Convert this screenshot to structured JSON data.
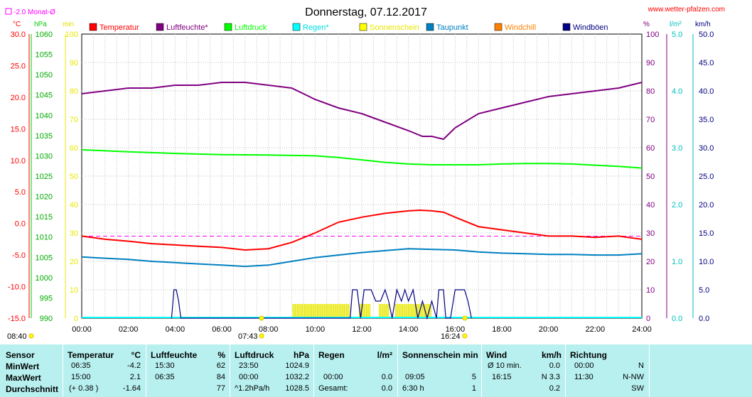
{
  "header": {
    "title": "Donnerstag, 07.12.2017",
    "url": "www.wetter-pfalzen.com",
    "monthly_avg": "-2.0 Monat-Ø"
  },
  "chart_data": {
    "type": "line",
    "x_ticks": [
      "00:00",
      "02:00",
      "04:00",
      "06:00",
      "08:00",
      "10:00",
      "12:00",
      "14:00",
      "16:00",
      "18:00",
      "20:00",
      "22:00",
      "24:00"
    ],
    "units": {
      "temp": "°C",
      "hpa": "hPa",
      "min": "min",
      "pct": "%",
      "lm2": "l/m²",
      "kmh": "km/h"
    },
    "temp_ticks": [
      "30.0",
      "25.0",
      "20.0",
      "15.0",
      "10.0",
      "5.0",
      "0.0",
      "-5.0",
      "-10.0",
      "-15.0"
    ],
    "hpa_ticks": [
      "1060",
      "1055",
      "1050",
      "1045",
      "1040",
      "1035",
      "1030",
      "1025",
      "1020",
      "1015",
      "1010",
      "1005",
      "1000",
      "995",
      "990"
    ],
    "min_ticks": [
      "100",
      "90",
      "80",
      "70",
      "60",
      "50",
      "40",
      "30",
      "20",
      "10",
      "0"
    ],
    "pct_ticks": [
      "100",
      "90",
      "80",
      "70",
      "60",
      "50",
      "40",
      "30",
      "20",
      "10",
      "0"
    ],
    "lm2_ticks": [
      "5.0",
      "4.0",
      "3.0",
      "2.0",
      "1.0",
      "0.0"
    ],
    "kmh_ticks": [
      "50.0",
      "45.0",
      "40.0",
      "35.0",
      "30.0",
      "25.0",
      "20.0",
      "15.0",
      "10.0",
      "5.0",
      "0.0"
    ],
    "legend": [
      {
        "label": "Temperatur",
        "color": "#ff0000"
      },
      {
        "label": "Luftfeuchte*",
        "color": "#800080"
      },
      {
        "label": "Luftdruck",
        "color": "#00ff00"
      },
      {
        "label": "Regen*",
        "color": "#00ffff"
      },
      {
        "label": "Sonnenschein",
        "color": "#ffff00"
      },
      {
        "label": "Taupunkt",
        "color": "#0080c0"
      },
      {
        "label": "Windchill",
        "color": "#ff8000"
      },
      {
        "label": "Windböen",
        "color": "#000080"
      }
    ],
    "monthly_avg_temp": -2.0,
    "sunrise": "08:40",
    "solar_noon": "07:43",
    "sunset": "16:24",
    "series": [
      {
        "name": "Temperatur",
        "axis": "temp",
        "color": "#ff0000",
        "x": [
          0,
          1,
          2,
          3,
          4,
          5,
          6,
          7,
          8,
          9,
          10,
          11,
          12,
          13,
          14,
          14.5,
          15,
          15.5,
          16,
          17,
          18,
          19,
          20,
          21,
          22,
          23,
          24
        ],
        "y": [
          -2.0,
          -2.5,
          -2.8,
          -3.2,
          -3.4,
          -3.6,
          -3.8,
          -4.2,
          -4.0,
          -3.0,
          -1.5,
          0.2,
          1.0,
          1.6,
          2.0,
          2.1,
          2.0,
          1.8,
          1.0,
          -0.5,
          -1.0,
          -1.5,
          -2.0,
          -2.0,
          -2.2,
          -2.0,
          -2.5
        ]
      },
      {
        "name": "Luftfeuchte*",
        "axis": "pct",
        "color": "#800080",
        "x": [
          0,
          1,
          2,
          3,
          4,
          5,
          6,
          7,
          8,
          9,
          10,
          11,
          12,
          13,
          14,
          14.6,
          15,
          15.5,
          16,
          17,
          18,
          19,
          20,
          21,
          22,
          23,
          24
        ],
        "y": [
          79,
          80,
          81,
          81,
          82,
          82,
          83,
          83,
          82,
          81,
          77,
          74,
          72,
          69,
          66,
          64,
          64,
          63,
          67,
          72,
          74,
          76,
          78,
          79,
          80,
          81,
          83
        ]
      },
      {
        "name": "Luftdruck",
        "axis": "hpa",
        "color": "#00ff00",
        "x": [
          0,
          2,
          4,
          6,
          8,
          10,
          11,
          12,
          13,
          14,
          15,
          16,
          17,
          18,
          19,
          20,
          21,
          22,
          23,
          24
        ],
        "y": [
          1031.5,
          1031.0,
          1030.6,
          1030.3,
          1030.2,
          1030.0,
          1029.6,
          1029.0,
          1028.4,
          1028.0,
          1027.8,
          1027.8,
          1027.8,
          1028.0,
          1028.1,
          1028.1,
          1028.0,
          1027.7,
          1027.4,
          1027.0
        ]
      },
      {
        "name": "Taupunkt",
        "axis": "temp",
        "color": "#0080c0",
        "x": [
          0,
          1,
          2,
          3,
          4,
          5,
          6,
          7,
          8,
          9,
          10,
          11,
          12,
          13,
          14,
          15,
          16,
          17,
          18,
          19,
          20,
          21,
          22,
          23,
          24
        ],
        "y": [
          -5.3,
          -5.5,
          -5.7,
          -6.0,
          -6.2,
          -6.4,
          -6.6,
          -6.8,
          -6.6,
          -6.0,
          -5.4,
          -5.0,
          -4.6,
          -4.3,
          -4.0,
          -4.1,
          -4.2,
          -4.5,
          -4.7,
          -4.8,
          -4.9,
          -4.9,
          -5.0,
          -5.0,
          -4.8
        ]
      },
      {
        "name": "Windböen",
        "axis": "kmh",
        "color": "#000080",
        "x": [
          3.85,
          3.95,
          4.05,
          4.15,
          4.25,
          11.5,
          11.6,
          11.8,
          11.95,
          12.1,
          12.4,
          12.6,
          12.8,
          13.0,
          13.15,
          13.3,
          13.5,
          13.7,
          13.85,
          14.0,
          14.2,
          14.4,
          14.6,
          14.8,
          15.0,
          15.2,
          15.3,
          15.5,
          15.6,
          15.8,
          16.0,
          16.2,
          16.4,
          16.55,
          16.7
        ],
        "y": [
          0,
          5,
          5,
          3,
          0,
          0,
          5,
          5,
          0,
          5,
          5,
          3,
          3,
          5,
          3,
          0,
          5,
          3,
          5,
          3,
          5,
          0,
          3,
          0,
          3,
          0,
          5,
          5,
          0,
          0,
          5,
          5,
          5,
          3,
          0
        ]
      }
    ],
    "sunshine_blocks": [
      [
        9.05,
        11.5
      ],
      [
        11.9,
        12.4
      ],
      [
        12.75,
        13.2
      ],
      [
        13.45,
        15.0
      ]
    ]
  },
  "table": {
    "headers": {
      "sensor": "Sensor",
      "temp": "Temperatur",
      "temp_u": "°C",
      "hum": "Luftfeuchte",
      "hum_u": "%",
      "press": "Luftdruck",
      "press_u": "hPa",
      "rain": "Regen",
      "rain_u": "l/m²",
      "sun": "Sonnenschein min",
      "wind": "Wind",
      "wind_u": "km/h",
      "dir": "Richtung"
    },
    "rows": [
      {
        "label": "MinWert",
        "temp_t": "06:35",
        "temp_v": "-4.2",
        "hum_t": "15:30",
        "hum_v": "62",
        "press_t": "23:50",
        "press_v": "1024.9",
        "rain_t": "",
        "rain_v": "",
        "sun_t": "",
        "sun_v": "",
        "wind_t": "Ø 10 min.",
        "wind_v": "0.0",
        "dir_t": "00:00",
        "dir_v": "N"
      },
      {
        "label": "MaxWert",
        "temp_t": "15:00",
        "temp_v": "2.1",
        "hum_t": "06:35",
        "hum_v": "84",
        "press_t": "00:00",
        "press_v": "1032.2",
        "rain_t": "00:00",
        "rain_v": "0.0",
        "sun_t": "09:05",
        "sun_v": "5",
        "wind_t": "16:15",
        "wind_v": "N 3.3",
        "dir_t": "11:30",
        "dir_v": "N-NW"
      },
      {
        "label": "Durchschnitt",
        "temp_t": "(+ 0.38 )",
        "temp_v": "-1.64",
        "hum_t": "",
        "hum_v": "77",
        "press_t": "^1.2hPa/h",
        "press_v": "1028.5",
        "rain_t": "Gesamt:",
        "rain_v": "0.0",
        "sun_t": "6:30 h",
        "sun_v": "1",
        "wind_t": "",
        "wind_v": "0.2",
        "dir_t": "",
        "dir_v": "SW"
      }
    ]
  }
}
